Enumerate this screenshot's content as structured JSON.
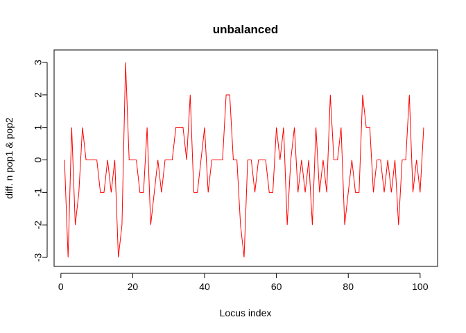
{
  "chart_data": {
    "type": "line",
    "title": "unbalanced",
    "xlabel": "Locus index",
    "ylabel": "diff. n pop1 & pop2",
    "xlim": [
      1,
      101
    ],
    "ylim": [
      -3,
      3
    ],
    "xticks": [
      0,
      20,
      40,
      60,
      80,
      100
    ],
    "yticks": [
      -3,
      -2,
      -1,
      0,
      1,
      2,
      3
    ],
    "grid": false,
    "line_color": "#ff0000",
    "x_start": 1,
    "series": [
      {
        "values": [
          0,
          -3,
          1,
          -2,
          -1,
          1,
          0,
          0,
          0,
          0,
          -1,
          -1,
          0,
          -1,
          0,
          -3,
          -2,
          3,
          0,
          0,
          0,
          -1,
          -1,
          1,
          -2,
          -1,
          0,
          -1,
          0,
          0,
          0,
          1,
          1,
          1,
          0,
          2,
          -1,
          -1,
          0,
          1,
          -1,
          0,
          0,
          0,
          0,
          2,
          2,
          0,
          0,
          -2,
          -3,
          0,
          0,
          -1,
          0,
          0,
          0,
          -1,
          -1,
          1,
          0,
          1,
          -2,
          0,
          1,
          -1,
          0,
          -1,
          0,
          -2,
          1,
          -1,
          0,
          -1,
          2,
          0,
          0,
          1,
          -2,
          -1,
          0,
          -1,
          -1,
          2,
          1,
          1,
          -1,
          0,
          0,
          -1,
          0,
          -1,
          0,
          -2,
          0,
          0,
          2,
          -1,
          0,
          -1,
          1
        ]
      }
    ]
  }
}
